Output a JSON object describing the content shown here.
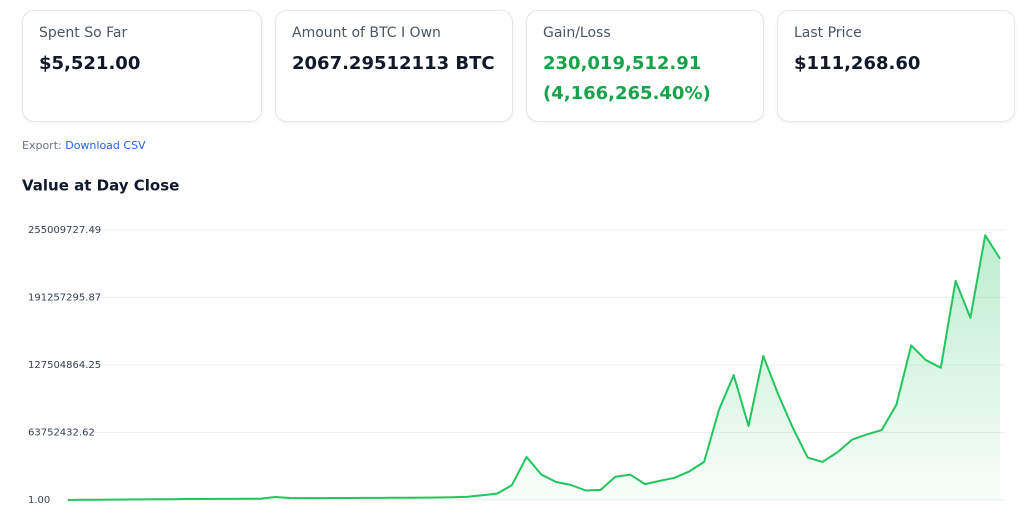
{
  "cards": [
    {
      "label": "Spent So Far",
      "value": "$5,521.00"
    },
    {
      "label": "Amount of BTC I Own",
      "value": "2067.29512113 BTC"
    },
    {
      "label": "Gain/Loss",
      "value": "230,019,512.91",
      "percent": "(4,166,265.40%)"
    },
    {
      "label": "Last Price",
      "value": "$111,268.60"
    }
  ],
  "export": {
    "label": "Export:",
    "link": "Download CSV"
  },
  "chart_data": {
    "type": "area",
    "title": "Value at Day Close",
    "color": "#22c55e",
    "grid": true,
    "ylim": [
      1,
      255009727.49
    ],
    "yticks": [
      {
        "value": 1,
        "label": "1.00"
      },
      {
        "value": 63752432.62,
        "label": "63752432.62"
      },
      {
        "value": 127504864.25,
        "label": "127504864.25"
      },
      {
        "value": 191257295.87,
        "label": "191257295.87"
      },
      {
        "value": 255009727.49,
        "label": "255009727.49"
      }
    ],
    "values": [
      1,
      200000,
      300000,
      400000,
      500000,
      600000,
      700000,
      800000,
      900000,
      900000,
      1000000,
      1000000,
      1100000,
      1200000,
      2800000,
      1900000,
      1800000,
      1800000,
      1900000,
      1900000,
      2000000,
      2000000,
      2100000,
      2200000,
      2300000,
      2400000,
      2600000,
      3000000,
      4500000,
      6000000,
      14000000,
      40600000,
      24000000,
      17000000,
      14200000,
      9000000,
      9500000,
      22000000,
      24000000,
      15000000,
      18000000,
      21000000,
      27000000,
      36000000,
      85000000,
      118000000,
      70000000,
      136000000,
      100000000,
      68000000,
      40000000,
      36000000,
      45000000,
      57000000,
      62000000,
      66000000,
      90000000,
      146000000,
      132000000,
      125000000,
      207000000,
      172000000,
      250000000,
      228000000
    ]
  }
}
